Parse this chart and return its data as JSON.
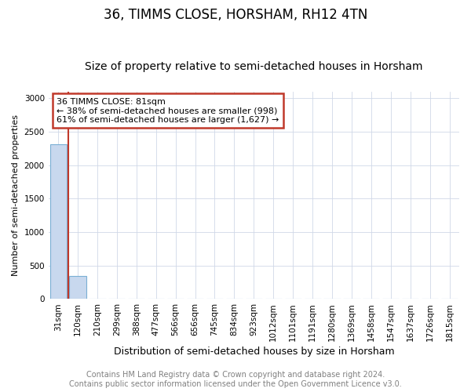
{
  "title": "36, TIMMS CLOSE, HORSHAM, RH12 4TN",
  "subtitle": "Size of property relative to semi-detached houses in Horsham",
  "xlabel": "Distribution of semi-detached houses by size in Horsham",
  "ylabel": "Number of semi-detached properties",
  "categories": [
    "31sqm",
    "120sqm",
    "210sqm",
    "299sqm",
    "388sqm",
    "477sqm",
    "566sqm",
    "656sqm",
    "745sqm",
    "834sqm",
    "923sqm",
    "1012sqm",
    "1101sqm",
    "1191sqm",
    "1280sqm",
    "1369sqm",
    "1458sqm",
    "1547sqm",
    "1637sqm",
    "1726sqm",
    "1815sqm"
  ],
  "values": [
    2310,
    350,
    5,
    0,
    0,
    0,
    0,
    0,
    0,
    0,
    0,
    0,
    0,
    0,
    0,
    0,
    0,
    0,
    0,
    0,
    0
  ],
  "bar_color": "#c8d8ee",
  "bar_edge_color": "#7aafd4",
  "ylim": [
    0,
    3100
  ],
  "yticks": [
    0,
    500,
    1000,
    1500,
    2000,
    2500,
    3000
  ],
  "property_line_x": 0.5,
  "property_line_color": "#c0392b",
  "annotation_text": "36 TIMMS CLOSE: 81sqm\n← 38% of semi-detached houses are smaller (998)\n61% of semi-detached houses are larger (1,627) →",
  "annotation_box_color": "#c0392b",
  "footer_line1": "Contains HM Land Registry data © Crown copyright and database right 2024.",
  "footer_line2": "Contains public sector information licensed under the Open Government Licence v3.0.",
  "title_fontsize": 12,
  "subtitle_fontsize": 10,
  "xlabel_fontsize": 9,
  "ylabel_fontsize": 8,
  "tick_fontsize": 7.5,
  "footer_fontsize": 7,
  "annotation_fontsize": 8
}
